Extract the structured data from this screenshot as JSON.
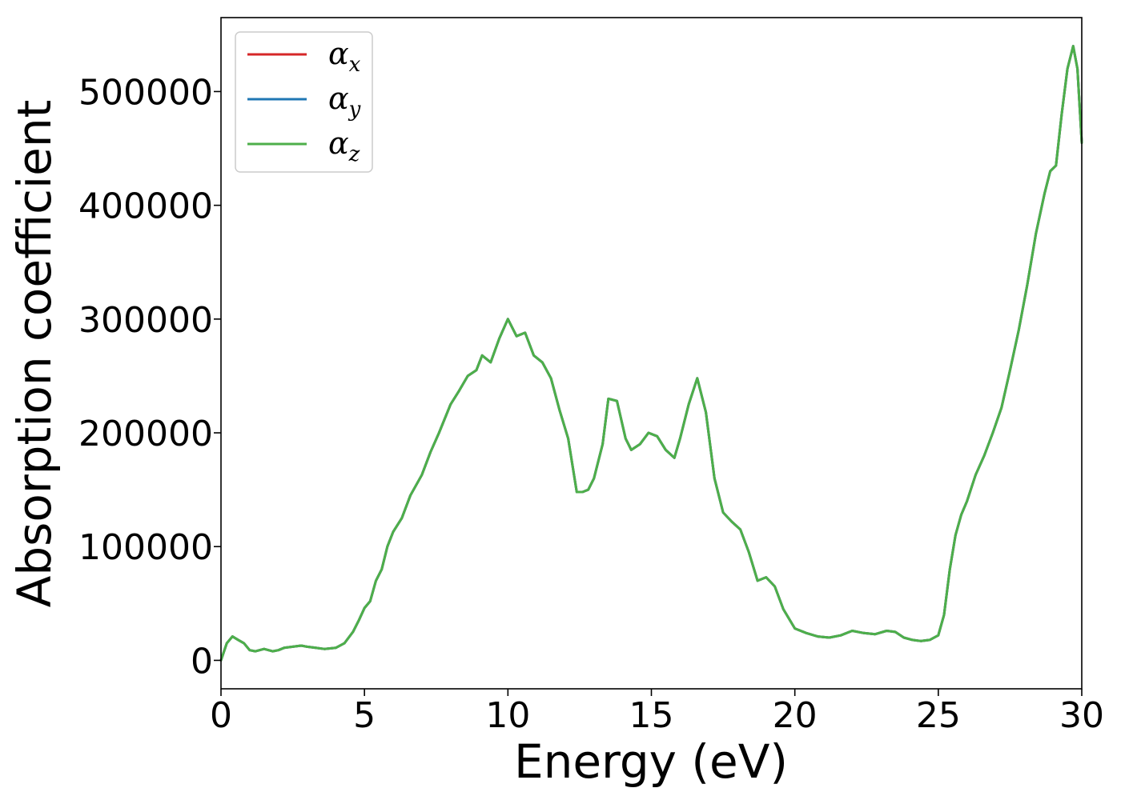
{
  "chart_data": {
    "type": "line",
    "xlabel": "Energy (eV)",
    "ylabel": "Absorption coefficient",
    "xlim": [
      0,
      30
    ],
    "ylim": [
      -25000,
      565000
    ],
    "xticks": [
      0,
      5,
      10,
      15,
      20,
      25,
      30
    ],
    "yticks": [
      0,
      100000,
      200000,
      300000,
      400000,
      500000
    ],
    "xtick_labels": [
      "0",
      "5",
      "10",
      "15",
      "20",
      "25",
      "30"
    ],
    "ytick_labels": [
      "0",
      "100000",
      "200000",
      "300000",
      "400000",
      "500000"
    ],
    "grid": false,
    "legend_position": "top-left",
    "series": [
      {
        "name": "αx",
        "symbol": "α",
        "subscript": "x",
        "color": "#d62728"
      },
      {
        "name": "αy",
        "symbol": "α",
        "subscript": "y",
        "color": "#1f77b4"
      },
      {
        "name": "αz",
        "symbol": "α",
        "subscript": "z",
        "color": "#4daf4a"
      }
    ],
    "x": [
      0,
      0.2,
      0.4,
      0.6,
      0.8,
      1.0,
      1.2,
      1.5,
      1.8,
      2.0,
      2.2,
      2.5,
      2.8,
      3.0,
      3.3,
      3.6,
      4.0,
      4.3,
      4.6,
      4.8,
      5.0,
      5.2,
      5.4,
      5.6,
      5.8,
      6.0,
      6.3,
      6.6,
      7.0,
      7.3,
      7.6,
      8.0,
      8.3,
      8.6,
      8.9,
      9.1,
      9.4,
      9.7,
      10.0,
      10.3,
      10.6,
      10.9,
      11.2,
      11.5,
      11.8,
      12.1,
      12.4,
      12.6,
      12.8,
      13.0,
      13.3,
      13.5,
      13.8,
      14.1,
      14.3,
      14.6,
      14.9,
      15.2,
      15.5,
      15.8,
      16.0,
      16.3,
      16.6,
      16.9,
      17.2,
      17.5,
      17.8,
      18.1,
      18.4,
      18.7,
      19.0,
      19.3,
      19.6,
      20.0,
      20.4,
      20.8,
      21.2,
      21.6,
      22.0,
      22.4,
      22.8,
      23.2,
      23.5,
      23.8,
      24.1,
      24.4,
      24.7,
      25.0,
      25.2,
      25.4,
      25.6,
      25.8,
      26.0,
      26.3,
      26.6,
      26.9,
      27.2,
      27.5,
      27.8,
      28.1,
      28.4,
      28.7,
      28.9,
      29.1,
      29.3,
      29.5,
      29.7,
      29.85,
      30.0
    ],
    "y": [
      0,
      15000,
      21000,
      18000,
      15000,
      9000,
      8000,
      10000,
      8000,
      9000,
      11000,
      12000,
      13000,
      12000,
      11000,
      10000,
      11000,
      15000,
      25000,
      35000,
      46000,
      52000,
      70000,
      80000,
      100000,
      113000,
      125000,
      145000,
      163000,
      183000,
      200000,
      225000,
      237000,
      250000,
      255000,
      268000,
      262000,
      283000,
      300000,
      285000,
      288000,
      268000,
      262000,
      248000,
      220000,
      195000,
      148000,
      148000,
      150000,
      160000,
      190000,
      230000,
      228000,
      195000,
      185000,
      190000,
      200000,
      197000,
      185000,
      178000,
      195000,
      225000,
      248000,
      218000,
      160000,
      130000,
      122000,
      115000,
      95000,
      70000,
      73000,
      65000,
      45000,
      28000,
      24000,
      21000,
      20000,
      22000,
      26000,
      24000,
      23000,
      26000,
      25000,
      20000,
      18000,
      17000,
      18000,
      22000,
      40000,
      80000,
      110000,
      128000,
      140000,
      163000,
      180000,
      200000,
      222000,
      255000,
      290000,
      330000,
      375000,
      410000,
      430000,
      435000,
      480000,
      520000,
      540000,
      520000,
      455000
    ]
  }
}
